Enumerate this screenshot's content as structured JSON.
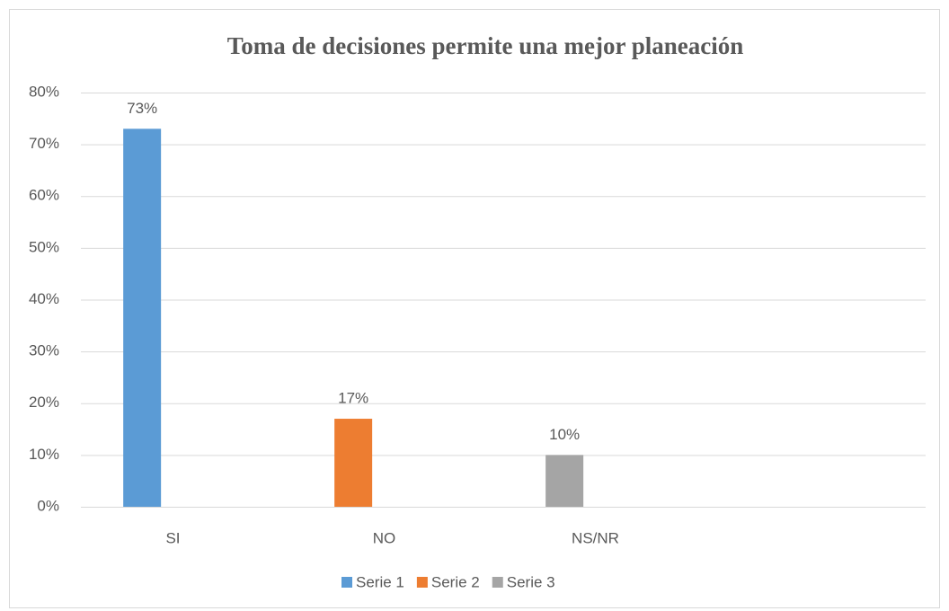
{
  "chart_data": {
    "type": "bar",
    "title": "Toma de decisiones permite una mejor planeación",
    "categories": [
      "SI",
      "NO",
      "NS/NR",
      null
    ],
    "series": [
      {
        "name": "Serie 1",
        "color": "#5b9bd5",
        "values": [
          73,
          null,
          null,
          null
        ],
        "value_labels": [
          "73%",
          null,
          null,
          null
        ]
      },
      {
        "name": "Serie 2",
        "color": "#ed7d31",
        "values": [
          null,
          17,
          null,
          null
        ],
        "value_labels": [
          null,
          "17%",
          null,
          null
        ]
      },
      {
        "name": "Serie 3",
        "color": "#a5a5a5",
        "values": [
          null,
          null,
          10,
          null
        ],
        "value_labels": [
          null,
          null,
          "10%",
          null
        ]
      }
    ],
    "ylim": [
      0,
      80
    ],
    "yticks": [
      {
        "value": 0,
        "label": "0%"
      },
      {
        "value": 10,
        "label": "10%"
      },
      {
        "value": 20,
        "label": "20%"
      },
      {
        "value": 30,
        "label": "30%"
      },
      {
        "value": 40,
        "label": "40%"
      },
      {
        "value": 50,
        "label": "50%"
      },
      {
        "value": 60,
        "label": "60%"
      },
      {
        "value": 70,
        "label": "70%"
      },
      {
        "value": 80,
        "label": "80%"
      }
    ],
    "grid": true,
    "legend": "bottom"
  }
}
